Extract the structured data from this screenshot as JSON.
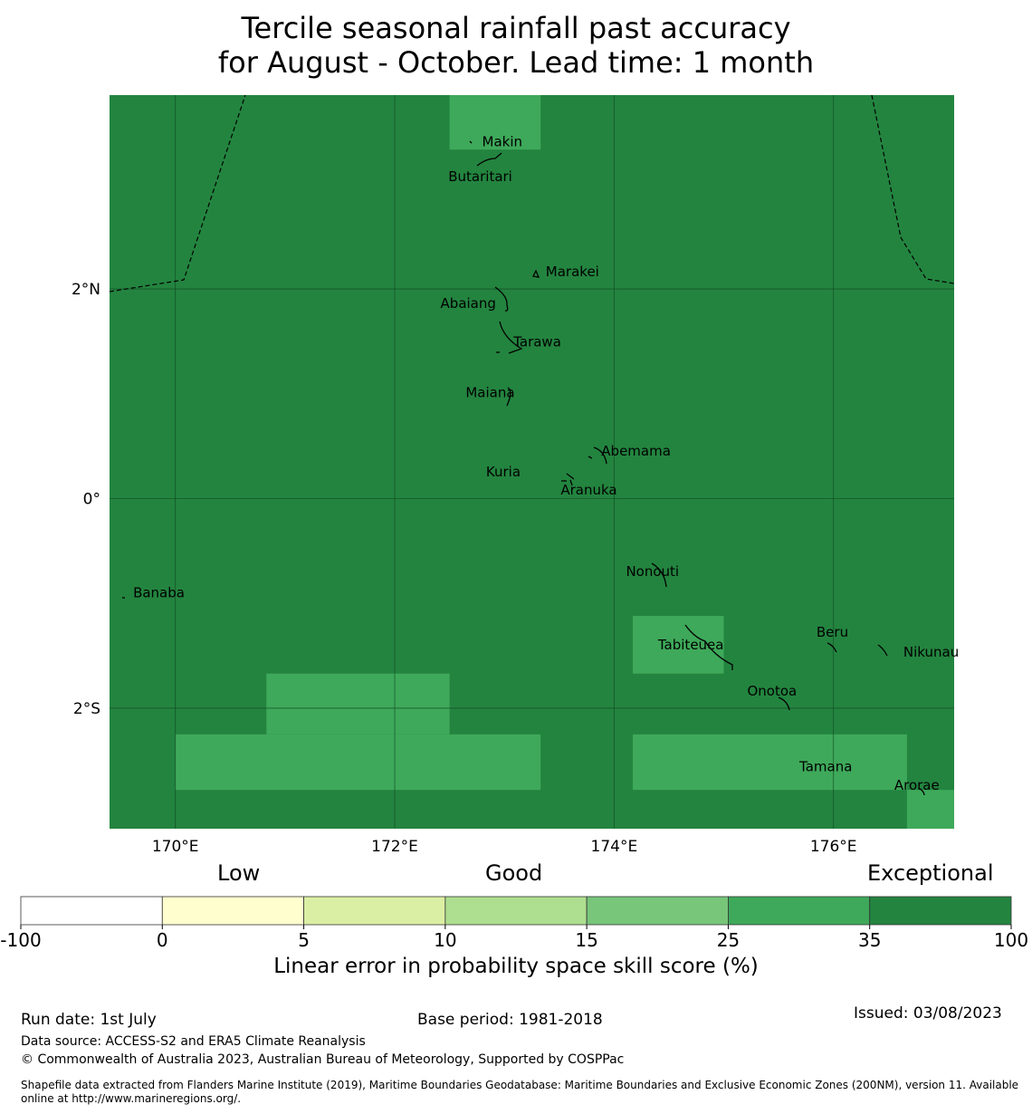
{
  "title_line1": "Tercile seasonal rainfall past accuracy",
  "title_line2": "for August - October. Lead time: 1 month",
  "map": {
    "lon_range": [
      169.4,
      177.1
    ],
    "lat_range": [
      -3.15,
      3.85
    ],
    "background_color": "#23843f",
    "lighter_color": "#3ea95a",
    "lon_ticks": [
      {
        "value": 170,
        "label": "170°E"
      },
      {
        "value": 172,
        "label": "172°E"
      },
      {
        "value": 174,
        "label": "174°E"
      },
      {
        "value": 176,
        "label": "176°E"
      }
    ],
    "lat_ticks": [
      {
        "value": 2,
        "label": "2°N"
      },
      {
        "value": 0,
        "label": "0°"
      },
      {
        "value": -2,
        "label": "2°S"
      }
    ],
    "skill_cells_lighter": [
      {
        "lon0": 172.5,
        "lon1": 173.33,
        "lat0": 3.33,
        "lat1": 3.85
      },
      {
        "lon0": 170.83,
        "lon1": 172.5,
        "lat0": -2.25,
        "lat1": -1.67
      },
      {
        "lon0": 170.0,
        "lon1": 173.33,
        "lat0": -2.78,
        "lat1": -2.25
      },
      {
        "lon0": 174.17,
        "lon1": 175.0,
        "lat0": -1.67,
        "lat1": -1.12
      },
      {
        "lon0": 174.17,
        "lon1": 176.67,
        "lat0": -2.78,
        "lat1": -2.25
      },
      {
        "lon0": 176.67,
        "lon1": 177.1,
        "lat0": -3.15,
        "lat1": -2.78
      }
    ],
    "places": [
      {
        "name": "Makin",
        "lon": 172.98,
        "lat": 3.36
      },
      {
        "name": "Butaritari",
        "lon": 172.78,
        "lat": 3.03
      },
      {
        "name": "Marakei",
        "lon": 173.62,
        "lat": 2.12
      },
      {
        "name": "Abaiang",
        "lon": 172.67,
        "lat": 1.82
      },
      {
        "name": "Tarawa",
        "lon": 173.3,
        "lat": 1.45
      },
      {
        "name": "Maiana",
        "lon": 172.87,
        "lat": 0.97
      },
      {
        "name": "Abemama",
        "lon": 174.2,
        "lat": 0.41
      },
      {
        "name": "Kuria",
        "lon": 172.99,
        "lat": 0.21
      },
      {
        "name": "Aranuka",
        "lon": 173.77,
        "lat": 0.04
      },
      {
        "name": "Nonouti",
        "lon": 174.35,
        "lat": -0.74
      },
      {
        "name": "Banaba",
        "lon": 169.85,
        "lat": -0.94
      },
      {
        "name": "Beru",
        "lon": 175.99,
        "lat": -1.32
      },
      {
        "name": "Nikunau",
        "lon": 176.89,
        "lat": -1.51
      },
      {
        "name": "Tabiteuea",
        "lon": 174.7,
        "lat": -1.44
      },
      {
        "name": "Onotoa",
        "lon": 175.44,
        "lat": -1.88
      },
      {
        "name": "Tamana",
        "lon": 175.93,
        "lat": -2.6
      },
      {
        "name": "Arorae",
        "lon": 176.76,
        "lat": -2.78
      }
    ]
  },
  "legend": {
    "categories": [
      "Low",
      "Good",
      "Exceptional"
    ],
    "colors": [
      "#ffffff",
      "#fffecf",
      "#dbefa4",
      "#aede90",
      "#78c67a",
      "#3ea95a",
      "#23843f"
    ],
    "ticks": [
      "-100",
      "0",
      "5",
      "10",
      "15",
      "25",
      "35",
      "100"
    ],
    "label": "Linear error in probability space skill score (%)"
  },
  "footer": {
    "run_date": "Run date: 1st July",
    "base_period": "Base period: 1981-2018",
    "issued": "Issued: 03/08/2023",
    "data_source": "Data source: ACCESS-S2 and ERA5 Climate Reanalysis",
    "copyright": "© Commonwealth of Australia 2023, Australian Bureau of Meteorology, Supported by COSPPac",
    "shapefile": "Shapefile data extracted from Flanders Marine Institute (2019), Maritime Boundaries Geodatabase: Maritime Boundaries and Exclusive Economic Zones (200NM), version 11. Available online at http://www.marineregions.org/."
  }
}
